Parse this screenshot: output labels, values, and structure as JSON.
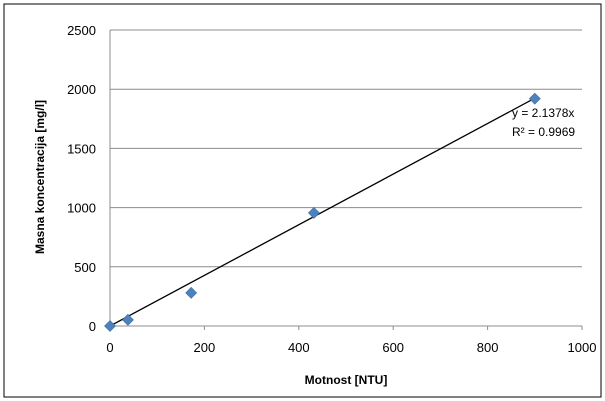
{
  "chart_data": {
    "type": "scatter",
    "title": "",
    "xlabel": "Motnost [NTU]",
    "ylabel": "Masna koncentracija  [mg/l]",
    "xlim": [
      0,
      1000
    ],
    "ylim": [
      0,
      2500
    ],
    "x_ticks": [
      0,
      200,
      400,
      600,
      800,
      1000
    ],
    "y_ticks": [
      0,
      500,
      1000,
      1500,
      2000,
      2500
    ],
    "grid": "horizontal",
    "series": [
      {
        "x": [
          0,
          38,
          172,
          432,
          900
        ],
        "y": [
          0,
          52,
          280,
          955,
          1920
        ],
        "color": "#4F81BD",
        "marker": "diamond"
      }
    ],
    "trendline": {
      "type": "linear",
      "slope": 2.1378,
      "x_range": [
        0,
        900
      ],
      "color": "#000000",
      "equation": "y = 2.1378x",
      "r2": "R² = 0.9969"
    }
  }
}
